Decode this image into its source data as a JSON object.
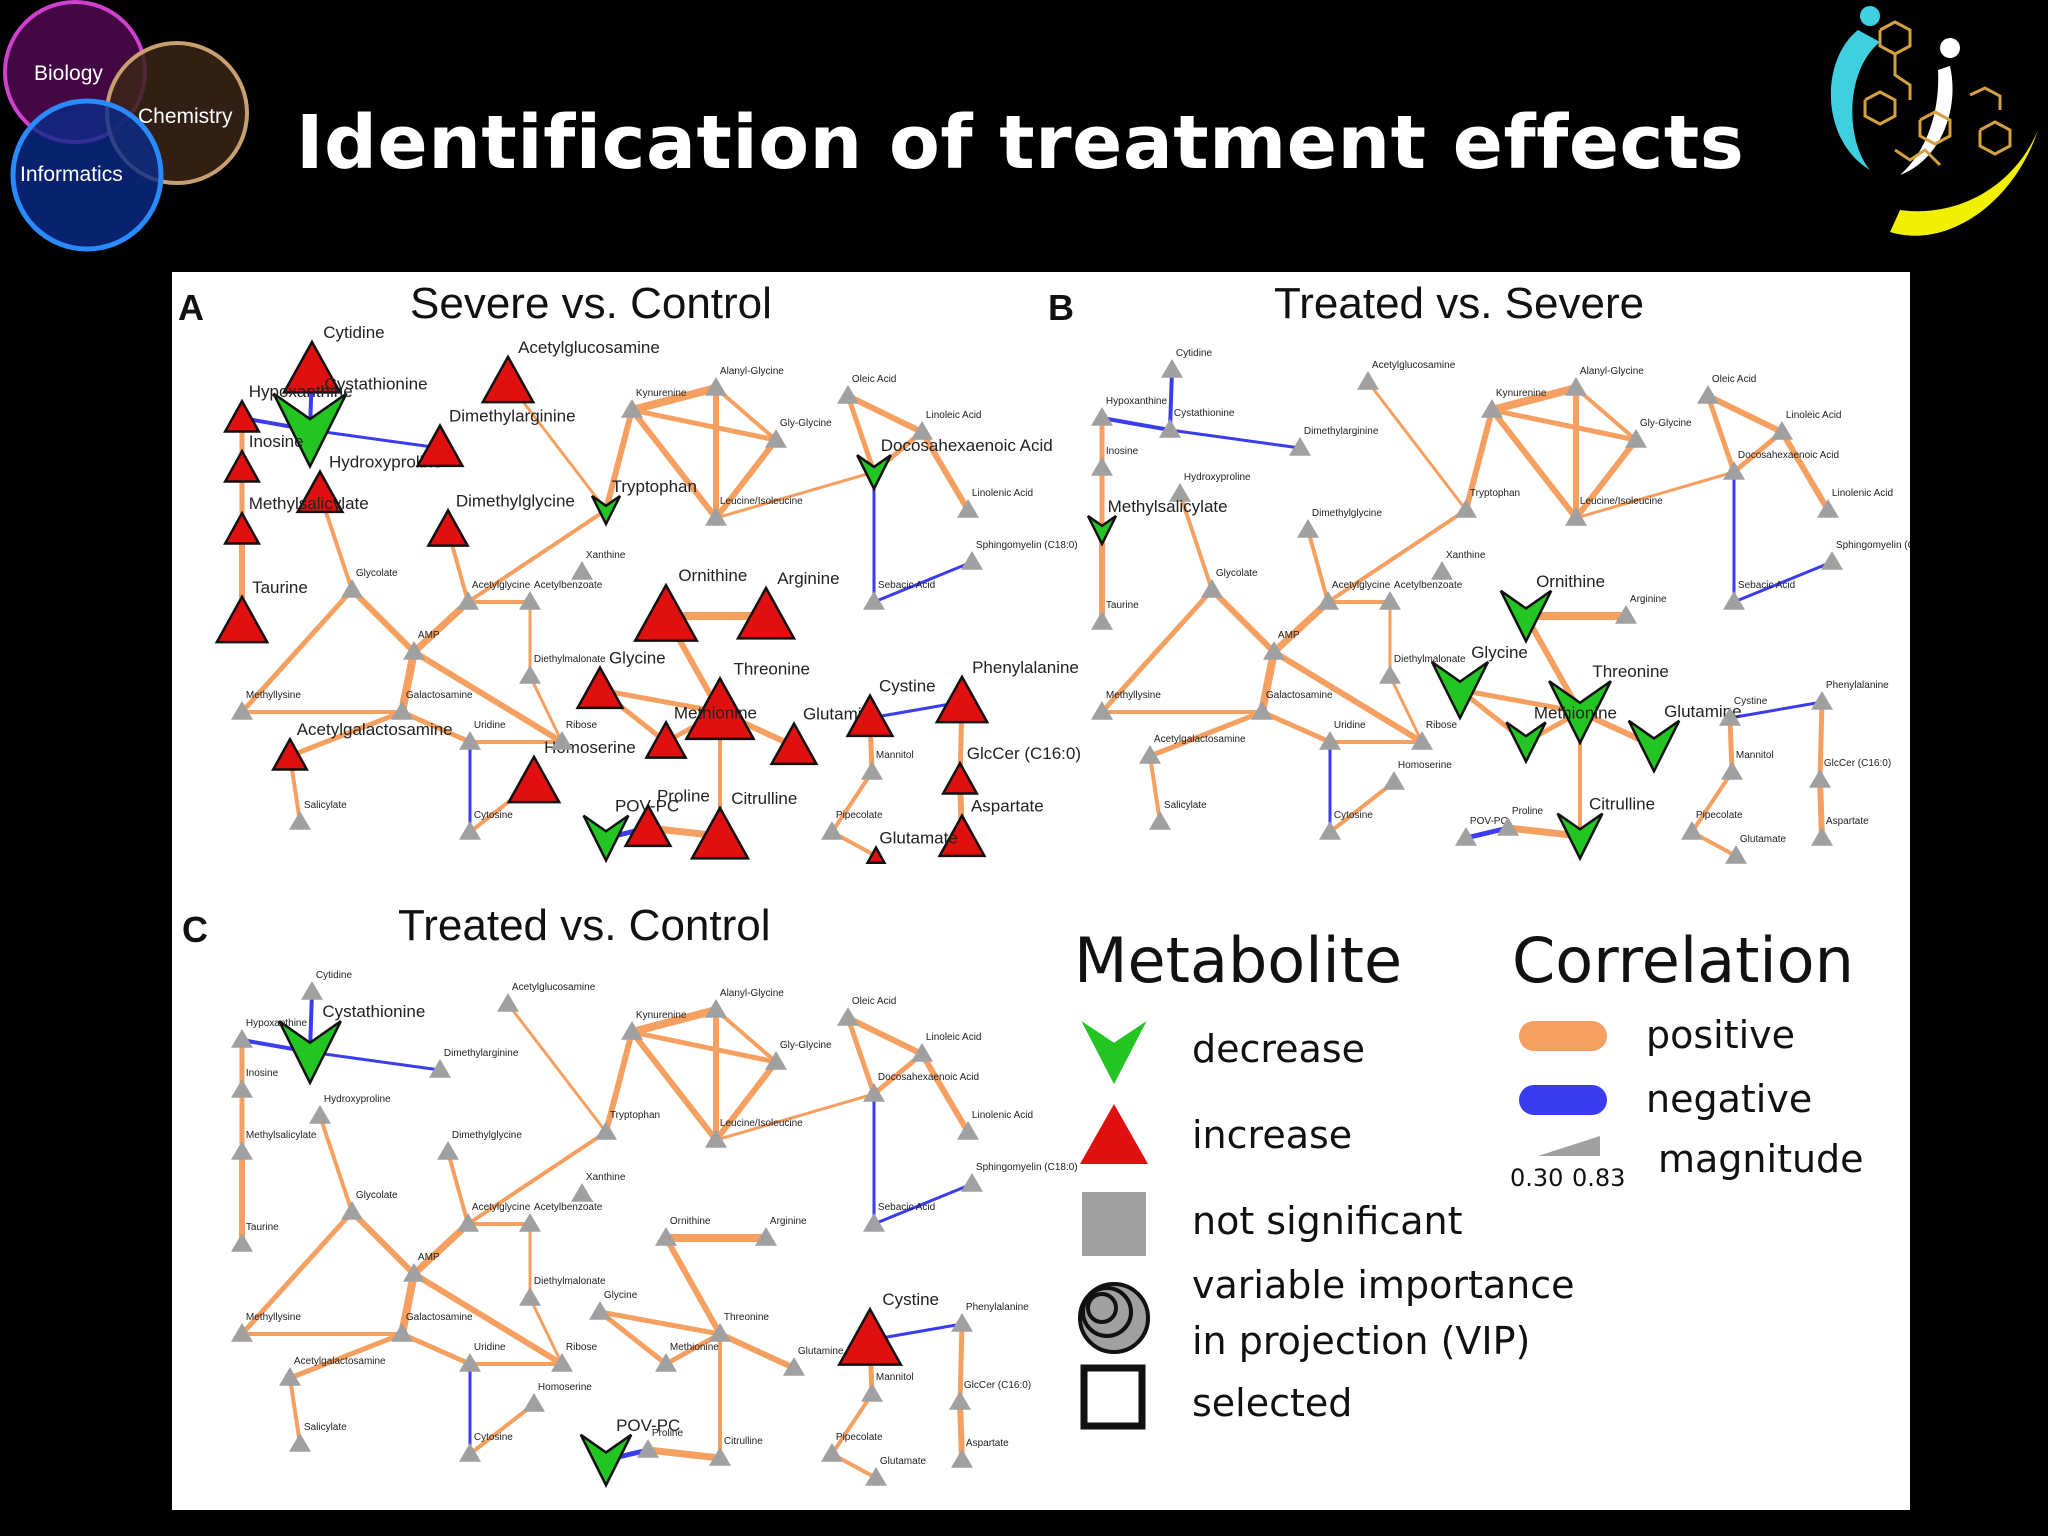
{
  "slide": {
    "title": "Identification of treatment effects",
    "venn": {
      "biology": "Biology",
      "chemistry": "Chemistry",
      "informatics": "Informatics"
    }
  },
  "colors": {
    "background": "#000000",
    "positive": "#f5a060",
    "negative": "#3b3bf0",
    "decrease": "#22c522",
    "increase": "#e01010",
    "not_significant": "#a0a0a0"
  },
  "panels": [
    {
      "letter": "A",
      "title": "Severe vs. Control",
      "nodes": [
        {
          "label": "Cytidine",
          "state": "up",
          "size": 2.0
        },
        {
          "label": "Cystathionine",
          "state": "down",
          "size": 2.6
        },
        {
          "label": "Hypoxanthine",
          "state": "up",
          "size": 1.2
        },
        {
          "label": "Inosine",
          "state": "up",
          "size": 1.2
        },
        {
          "label": "Hydroxyproline",
          "state": "up",
          "size": 1.6
        },
        {
          "label": "Dimethylarginine",
          "state": "up",
          "size": 1.6
        },
        {
          "label": "Dimethylglycine",
          "state": "up",
          "size": 1.4
        },
        {
          "label": "Methylsalicylate",
          "state": "up",
          "size": 1.2
        },
        {
          "label": "Acetylglucosamine",
          "state": "up",
          "size": 1.8
        },
        {
          "label": "Tryptophan",
          "state": "down",
          "size": 1.0
        },
        {
          "label": "Taurine",
          "state": "up",
          "size": 1.8
        },
        {
          "label": "Acetylgalactosamine",
          "state": "up",
          "size": 1.2
        },
        {
          "label": "Docosahexaenoic Acid",
          "state": "down",
          "size": 1.2
        },
        {
          "label": "Ornithine",
          "state": "up",
          "size": 2.2
        },
        {
          "label": "Arginine",
          "state": "up",
          "size": 2.0
        },
        {
          "label": "Glycine",
          "state": "up",
          "size": 1.6
        },
        {
          "label": "Threonine",
          "state": "up",
          "size": 2.4
        },
        {
          "label": "Methionine",
          "state": "up",
          "size": 1.4
        },
        {
          "label": "Glutamine",
          "state": "up",
          "size": 1.6
        },
        {
          "label": "Homoserine",
          "state": "up",
          "size": 1.8
        },
        {
          "label": "POV-PC",
          "state": "down",
          "size": 1.6
        },
        {
          "label": "Proline",
          "state": "up",
          "size": 1.6
        },
        {
          "label": "Citrulline",
          "state": "up",
          "size": 2.0
        },
        {
          "label": "Cystine",
          "state": "up",
          "size": 1.6
        },
        {
          "label": "Phenylalanine",
          "state": "up",
          "size": 1.8
        },
        {
          "label": "GlcCer (C16:0)",
          "state": "up",
          "size": 1.2
        },
        {
          "label": "Aspartate",
          "state": "up",
          "size": 1.6
        },
        {
          "label": "Glutamate",
          "state": "up",
          "size": 0.6
        }
      ]
    },
    {
      "letter": "B",
      "title": "Treated vs. Severe",
      "nodes": [
        {
          "label": "Methylsalicylate",
          "state": "down",
          "size": 1.0
        },
        {
          "label": "Ornithine",
          "state": "down",
          "size": 1.8
        },
        {
          "label": "Glycine",
          "state": "down",
          "size": 2.0
        },
        {
          "label": "Threonine",
          "state": "down",
          "size": 2.2
        },
        {
          "label": "Methionine",
          "state": "down",
          "size": 1.4
        },
        {
          "label": "Glutamine",
          "state": "down",
          "size": 1.8
        },
        {
          "label": "Citrulline",
          "state": "down",
          "size": 1.6
        }
      ]
    },
    {
      "letter": "C",
      "title": "Treated vs. Control",
      "nodes": [
        {
          "label": "Cystathionine",
          "state": "down",
          "size": 2.2
        },
        {
          "label": "POV-PC",
          "state": "down",
          "size": 1.8
        },
        {
          "label": "Cystine",
          "state": "up",
          "size": 2.2
        }
      ]
    }
  ],
  "legend": {
    "metabolite_header": "Metabolite",
    "correlation_header": "Correlation",
    "decrease": "decrease",
    "increase": "increase",
    "not_significant": "not significant",
    "vip_line1": "variable importance",
    "vip_line2": "in projection (VIP)",
    "selected": "selected",
    "positive": "positive",
    "negative": "negative",
    "mag_low": "0.30",
    "mag_high": "0.83",
    "magnitude": "magnitude"
  }
}
